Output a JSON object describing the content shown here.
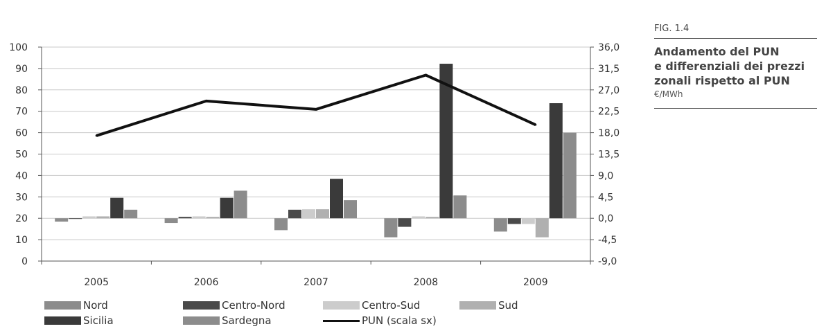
{
  "figure": {
    "label": "FIG. 1.4",
    "title_lines": [
      "Andamento del PUN",
      "e differenziali dei prezzi",
      "zonali rispetto al PUN"
    ],
    "unit": "€/MWh"
  },
  "chart_data": {
    "type": "bar",
    "categories": [
      "2005",
      "2006",
      "2007",
      "2008",
      "2009"
    ],
    "left_axis": {
      "ticks": [
        "0",
        "10",
        "20",
        "30",
        "40",
        "50",
        "60",
        "70",
        "80",
        "90",
        "100"
      ],
      "ylim": [
        0,
        100
      ]
    },
    "right_axis": {
      "ticks": [
        "-9,0",
        "-4,5",
        "0,0",
        "4,5",
        "9,0",
        "13,5",
        "18,0",
        "22,5",
        "27,0",
        "31,5",
        "36,0"
      ],
      "ylim": [
        -9,
        36
      ]
    },
    "series": [
      {
        "name": "Nord",
        "axis": "right",
        "color": "#8c8c8c",
        "values": [
          -0.7,
          -1.0,
          -2.5,
          -4.0,
          -2.8
        ]
      },
      {
        "name": "Centro-Nord",
        "axis": "right",
        "color": "#4a4a4a",
        "values": [
          0.0,
          0.3,
          1.8,
          -1.8,
          -1.2
        ]
      },
      {
        "name": "Centro-Sud",
        "axis": "right",
        "color": "#cccccc",
        "values": [
          0.4,
          0.4,
          1.9,
          0.4,
          -1.2
        ]
      },
      {
        "name": "Sud",
        "axis": "right",
        "color": "#b0b0b0",
        "values": [
          0.4,
          0.3,
          1.9,
          0.3,
          -4.0
        ]
      },
      {
        "name": "Sicilia",
        "axis": "right",
        "color": "#3a3a3a",
        "values": [
          4.3,
          4.3,
          8.3,
          32.5,
          24.2
        ]
      },
      {
        "name": "Sardegna",
        "axis": "right",
        "color": "#8c8c8c",
        "values": [
          1.8,
          5.8,
          3.8,
          4.8,
          18.0
        ]
      }
    ],
    "line": {
      "name": "PUN (scala sx)",
      "axis": "left",
      "color": "#111111",
      "values": [
        58.6,
        74.8,
        70.9,
        86.9,
        63.7
      ]
    },
    "legend_labels": [
      "Nord",
      "Centro-Nord",
      "Centro-Sud",
      "Sud",
      "Sicilia",
      "Sardegna",
      "PUN (scala sx)"
    ],
    "grid": true,
    "legend_position": "bottom"
  }
}
